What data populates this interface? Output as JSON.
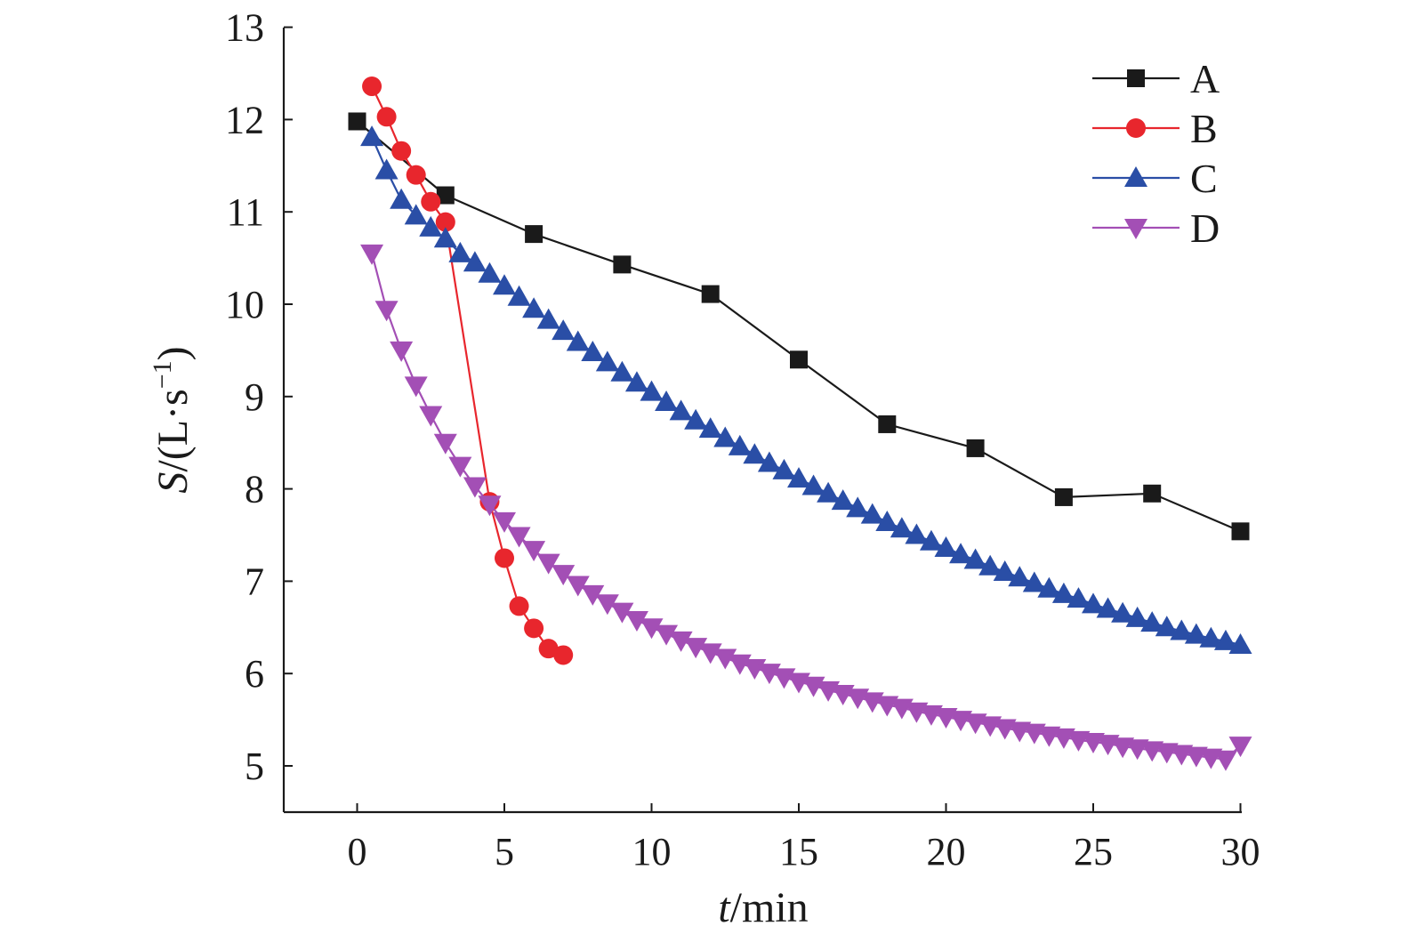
{
  "chart_data": {
    "type": "line",
    "xlabel": {
      "var": "t",
      "unit": "/min"
    },
    "ylabel": {
      "var": "S",
      "unit": "/(L·s",
      "sup": "−1",
      "close": ")"
    },
    "xlim": [
      -2.5,
      30
    ],
    "ylim": [
      4.5,
      13
    ],
    "xticks": [
      0,
      5,
      10,
      15,
      20,
      25,
      30
    ],
    "yticks": [
      5,
      6,
      7,
      8,
      9,
      10,
      11,
      12,
      13
    ],
    "grid": false,
    "legend": "top-right",
    "series": [
      {
        "name": "A",
        "color": "#1a1a1a",
        "marker": "square",
        "x": [
          0,
          3,
          6,
          9,
          12,
          15,
          18,
          21,
          24,
          27,
          30
        ],
        "y": [
          11.98,
          11.18,
          10.76,
          10.43,
          10.11,
          9.4,
          8.7,
          8.44,
          7.91,
          7.95,
          7.54
        ]
      },
      {
        "name": "B",
        "color": "#e8262d",
        "marker": "circle",
        "x": [
          0.5,
          1,
          1.5,
          2,
          2.5,
          3,
          4.5,
          5,
          5.5,
          6,
          6.5,
          7
        ],
        "y": [
          12.36,
          12.03,
          11.66,
          11.4,
          11.11,
          10.89,
          7.86,
          7.25,
          6.73,
          6.49,
          6.27,
          6.2
        ]
      },
      {
        "name": "C",
        "color": "#2a4ea6",
        "marker": "triangle-up",
        "x": [
          0.5,
          1,
          1.5,
          2,
          2.5,
          3,
          3.5,
          4,
          4.5,
          5,
          5.5,
          6,
          6.5,
          7,
          7.5,
          8,
          8.5,
          9,
          9.5,
          10,
          10.5,
          11,
          11.5,
          12,
          12.5,
          13,
          13.5,
          14,
          14.5,
          15,
          15.5,
          16,
          16.5,
          17,
          17.5,
          18,
          18.5,
          19,
          19.5,
          20,
          20.5,
          21,
          21.5,
          22,
          22.5,
          23,
          23.5,
          24,
          24.5,
          25,
          25.5,
          26,
          26.5,
          27,
          27.5,
          28,
          28.5,
          29,
          29.5,
          30
        ],
        "y": [
          11.81,
          11.45,
          11.13,
          10.96,
          10.83,
          10.71,
          10.55,
          10.45,
          10.33,
          10.2,
          10.08,
          9.95,
          9.83,
          9.71,
          9.59,
          9.48,
          9.37,
          9.26,
          9.15,
          9.05,
          8.94,
          8.84,
          8.74,
          8.65,
          8.55,
          8.46,
          8.37,
          8.28,
          8.2,
          8.11,
          8.03,
          7.95,
          7.87,
          7.79,
          7.72,
          7.64,
          7.57,
          7.5,
          7.43,
          7.36,
          7.29,
          7.23,
          7.16,
          7.1,
          7.04,
          6.98,
          6.92,
          6.86,
          6.81,
          6.75,
          6.7,
          6.65,
          6.6,
          6.55,
          6.5,
          6.46,
          6.42,
          6.38,
          6.35,
          6.31
        ]
      },
      {
        "name": "D",
        "color": "#a34fb5",
        "marker": "triangle-down",
        "x": [
          0.5,
          1,
          1.5,
          2,
          2.5,
          3,
          3.5,
          4,
          4.5,
          5,
          5.5,
          6,
          6.5,
          7,
          7.5,
          8,
          8.5,
          9,
          9.5,
          10,
          10.5,
          11,
          11.5,
          12,
          12.5,
          13,
          13.5,
          14,
          14.5,
          15,
          15.5,
          16,
          16.5,
          17,
          17.5,
          18,
          18.5,
          19,
          19.5,
          20,
          20.5,
          21,
          21.5,
          22,
          22.5,
          23,
          23.5,
          24,
          24.5,
          25,
          25.5,
          26,
          26.5,
          27,
          27.5,
          28,
          28.5,
          29,
          29.5,
          30
        ],
        "y": [
          10.55,
          9.94,
          9.5,
          9.12,
          8.8,
          8.5,
          8.25,
          8.03,
          7.83,
          7.65,
          7.49,
          7.34,
          7.2,
          7.08,
          6.96,
          6.86,
          6.76,
          6.67,
          6.58,
          6.5,
          6.43,
          6.36,
          6.29,
          6.23,
          6.17,
          6.11,
          6.06,
          6.01,
          5.96,
          5.91,
          5.87,
          5.82,
          5.78,
          5.74,
          5.7,
          5.66,
          5.63,
          5.59,
          5.56,
          5.53,
          5.5,
          5.47,
          5.44,
          5.41,
          5.38,
          5.36,
          5.33,
          5.31,
          5.28,
          5.26,
          5.24,
          5.21,
          5.19,
          5.17,
          5.15,
          5.13,
          5.11,
          5.09,
          5.07,
          5.22
        ]
      }
    ]
  }
}
